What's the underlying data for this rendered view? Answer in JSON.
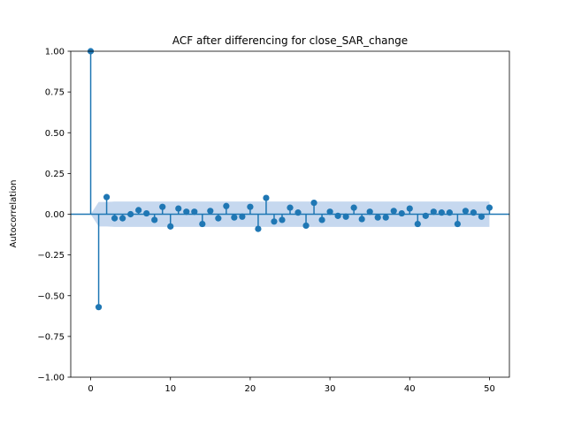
{
  "chart_data": {
    "type": "scatter",
    "title": "ACF after differencing for close_SAR_change",
    "xlabel": "",
    "ylabel": "Autocorrelation",
    "xlim": [
      -2.5,
      52.5
    ],
    "ylim": [
      -1.0,
      1.0
    ],
    "x_ticks": [
      0,
      10,
      20,
      30,
      40,
      50
    ],
    "x_tick_labels": [
      "0",
      "10",
      "20",
      "30",
      "40",
      "50"
    ],
    "y_ticks": [
      1.0,
      0.75,
      0.5,
      0.25,
      0.0,
      -0.25,
      -0.5,
      -0.75,
      -1.0
    ],
    "y_tick_labels": [
      "1.00",
      "0.75",
      "0.50",
      "0.25",
      "0.00",
      "−0.25",
      "−0.50",
      "−0.75",
      "−1.00"
    ],
    "grid": false,
    "colors": {
      "stem": "#1f77b4",
      "marker": "#1f77b4",
      "confidence_band": "#aec7e8"
    },
    "lags": [
      0,
      1,
      2,
      3,
      4,
      5,
      6,
      7,
      8,
      9,
      10,
      11,
      12,
      13,
      14,
      15,
      16,
      17,
      18,
      19,
      20,
      21,
      22,
      23,
      24,
      25,
      26,
      27,
      28,
      29,
      30,
      31,
      32,
      33,
      34,
      35,
      36,
      37,
      38,
      39,
      40,
      41,
      42,
      43,
      44,
      45,
      46,
      47,
      48,
      49,
      50
    ],
    "values": [
      1.0,
      -0.57,
      0.105,
      -0.025,
      -0.025,
      0.0,
      0.025,
      0.005,
      -0.035,
      0.045,
      -0.075,
      0.035,
      0.015,
      0.015,
      -0.06,
      0.02,
      -0.025,
      0.05,
      -0.02,
      -0.015,
      0.045,
      -0.09,
      0.1,
      -0.045,
      -0.035,
      0.04,
      0.01,
      -0.07,
      0.07,
      -0.035,
      0.015,
      -0.01,
      -0.015,
      0.04,
      -0.03,
      0.015,
      -0.02,
      -0.02,
      0.02,
      0.005,
      0.035,
      -0.06,
      -0.01,
      0.015,
      0.01,
      0.01,
      -0.06,
      0.02,
      0.01,
      -0.015,
      0.04
    ],
    "confidence_upper": [
      0.0,
      0.075,
      0.075,
      0.078,
      0.078,
      0.078,
      0.078,
      0.078,
      0.078,
      0.078,
      0.078,
      0.078,
      0.078,
      0.078,
      0.078,
      0.078,
      0.078,
      0.078,
      0.078,
      0.078,
      0.078,
      0.078,
      0.078,
      0.078,
      0.078,
      0.078,
      0.078,
      0.078,
      0.078,
      0.078,
      0.078,
      0.078,
      0.078,
      0.078,
      0.078,
      0.078,
      0.078,
      0.078,
      0.078,
      0.078,
      0.078,
      0.078,
      0.078,
      0.078,
      0.078,
      0.078,
      0.078,
      0.078,
      0.078,
      0.078,
      0.078
    ]
  }
}
